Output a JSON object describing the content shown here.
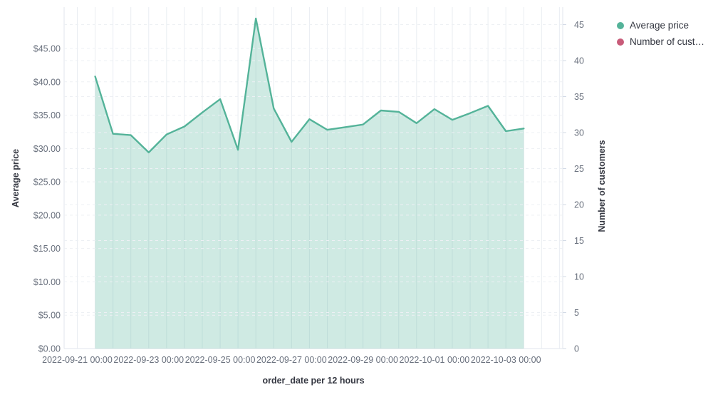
{
  "legend": {
    "items": [
      {
        "label": "Average price",
        "color": "#54b399"
      },
      {
        "label": "Number of cust…",
        "color": "#c85b79"
      }
    ]
  },
  "chart_data": {
    "type": "area",
    "title": "",
    "x_axis": {
      "title": "order_date per 12 hours",
      "tick_labels": [
        "2022-09-21 00:00",
        "2022-09-23 00:00",
        "2022-09-25 00:00",
        "2022-09-27 00:00",
        "2022-09-29 00:00",
        "2022-10-01 00:00",
        "2022-10-03 00:00"
      ],
      "interval": "12 hours"
    },
    "y_axis_left": {
      "title": "Average price",
      "tick_values": [
        0,
        5,
        10,
        15,
        20,
        25,
        30,
        35,
        40,
        45
      ],
      "tick_labels": [
        "$0.00",
        "$5.00",
        "$10.00",
        "$15.00",
        "$20.00",
        "$25.00",
        "$30.00",
        "$35.00",
        "$40.00",
        "$45.00"
      ]
    },
    "y_axis_right": {
      "title": "Number of customers",
      "tick_values": [
        0,
        5,
        10,
        15,
        20,
        25,
        30,
        35,
        40,
        45
      ],
      "tick_labels": [
        "0",
        "5",
        "10",
        "15",
        "20",
        "25",
        "30",
        "35",
        "40",
        "45"
      ]
    },
    "series": [
      {
        "name": "Average price",
        "axis": "left",
        "color": "#54b399",
        "fill_opacity": 0.28,
        "x_start": "2022-09-21 12:00",
        "x_step_hours": 12,
        "values": [
          40.8,
          32.2,
          32.0,
          29.4,
          32.1,
          33.3,
          35.4,
          37.4,
          29.8,
          49.5,
          36.0,
          31.0,
          34.4,
          32.8,
          33.2,
          33.6,
          35.7,
          35.5,
          33.8,
          35.9,
          34.3,
          35.3,
          36.4,
          32.6,
          33.0
        ]
      },
      {
        "name": "Number of customers",
        "axis": "right",
        "color": "#c85b79",
        "values": []
      }
    ]
  }
}
